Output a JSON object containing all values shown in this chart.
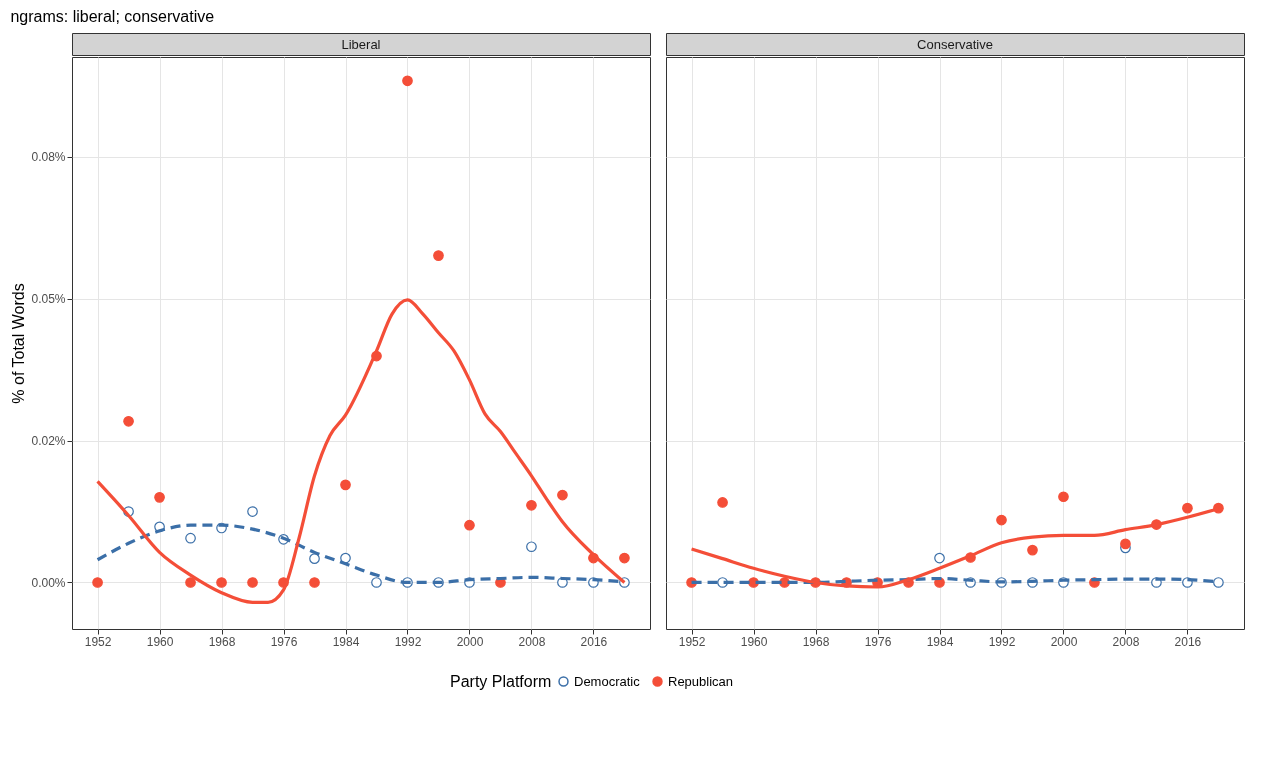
{
  "chart_data": [
    {
      "type": "scatter",
      "title": "ngrams: liberal; conservative",
      "subtitle": "Liberal",
      "ylabel": "% of Total Words",
      "legend_title": "Party Platform",
      "legend": "bottom",
      "grid": true,
      "marker": "circle",
      "x": [
        1952,
        1956,
        1960,
        1964,
        1968,
        1972,
        1976,
        1980,
        1984,
        1988,
        1992,
        1996,
        2000,
        2004,
        2008,
        2012,
        2016,
        2020
      ],
      "xlim": [
        1948.7,
        2023.3
      ],
      "xticks": [
        1952,
        1960,
        1968,
        1976,
        1984,
        1992,
        2000,
        2008,
        2016
      ],
      "ylim": [
        -0.0082,
        0.0926
      ],
      "yticks": [
        {
          "value": 0,
          "label": "0.00%"
        },
        {
          "value": 0.025,
          "label": "0.02%"
        },
        {
          "value": 0.05,
          "label": "0.05%"
        },
        {
          "value": 0.075,
          "label": "0.08%"
        }
      ],
      "series": [
        {
          "name": "Democratic",
          "color": "#3b6fa8",
          "values": [
            null,
            0.0125,
            0.0098,
            0.0078,
            0.0096,
            0.0125,
            0.0076,
            0.0042,
            0.0043,
            0,
            0,
            0,
            0,
            null,
            0.0063,
            0,
            0,
            0
          ]
        },
        {
          "name": "Republican",
          "color": "#f44e38",
          "values": [
            0,
            0.0284,
            0.015,
            0,
            0,
            0,
            0,
            0,
            0.0172,
            0.0399,
            0.0884,
            0.0576,
            0.0101,
            0,
            0.0136,
            0.0154,
            0.0043,
            0.0043
          ]
        },
        {
          "type": "line",
          "marker": "none",
          "line_style": "dashed",
          "color": "#3b6fa8",
          "values": [
            0.004,
            0.0069,
            0.0091,
            0.0101,
            0.0101,
            0.0094,
            0.0078,
            0.0053,
            0.0033,
            0.0013,
            0,
            0,
            0.0005,
            0.0007,
            0.0009,
            0.0007,
            0.0005,
            0.0001
          ]
        },
        {
          "type": "line",
          "marker": "none",
          "line_style": "solid",
          "color": "#f44e38",
          "x": [
            1952,
            1956,
            1960,
            1964,
            1968,
            1972,
            1974,
            1976,
            1978,
            1980,
            1982,
            1984,
            1988,
            1990,
            1992,
            1994,
            1996,
            1998,
            2000,
            2002,
            2004,
            2006,
            2008,
            2010,
            2012,
            2016,
            2020
          ],
          "values": [
            0.0178,
            0.0118,
            0.0053,
            0.0013,
            -0.0018,
            -0.0035,
            -0.0035,
            -0.0013,
            0.0078,
            0.0188,
            0.0259,
            0.0295,
            0.0408,
            0.0473,
            0.0498,
            0.0473,
            0.044,
            0.0408,
            0.0357,
            0.0297,
            0.0266,
            0.0227,
            0.0188,
            0.0146,
            0.0107,
            0.0049,
            0
          ]
        }
      ]
    },
    {
      "type": "scatter",
      "subtitle": "Conservative",
      "grid": true,
      "marker": "circle",
      "tick_labels": "x",
      "x": [
        1952,
        1956,
        1960,
        1964,
        1968,
        1972,
        1976,
        1980,
        1984,
        1988,
        1992,
        1996,
        2000,
        2004,
        2008,
        2012,
        2016,
        2020
      ],
      "xlim": [
        1948.7,
        2023.3
      ],
      "xticks": [
        1952,
        1960,
        1968,
        1976,
        1984,
        1992,
        2000,
        2008,
        2016
      ],
      "ylim": [
        -0.0082,
        0.0926
      ],
      "yticks": [
        0,
        0.025,
        0.05,
        0.075
      ],
      "series": [
        {
          "name": "Democratic",
          "color": "#3b6fa8",
          "values": [
            null,
            0,
            null,
            null,
            null,
            null,
            null,
            null,
            0.0043,
            0,
            0,
            0,
            0,
            null,
            0.0061,
            0,
            0,
            0
          ]
        },
        {
          "name": "Republican",
          "color": "#f44e38",
          "values": [
            0,
            0.0141,
            0,
            0,
            0,
            0,
            0,
            0,
            0,
            0.0044,
            0.011,
            0.0057,
            0.0151,
            0,
            0.0068,
            0.0102,
            0.0131,
            0.0131
          ]
        },
        {
          "type": "line",
          "marker": "none",
          "line_style": "dashed",
          "color": "#3b6fa8",
          "values": [
            0,
            0,
            0,
            0,
            0,
            0.0002,
            0.0004,
            0.0005,
            0.0007,
            0.0004,
            0.0001,
            0.0002,
            0.0004,
            0.0005,
            0.0006,
            0.0006,
            0.0005,
            0.0001
          ]
        },
        {
          "type": "line",
          "marker": "none",
          "line_style": "solid",
          "color": "#f44e38",
          "values": [
            0.0059,
            0.0042,
            0.0025,
            0.0011,
            0,
            -0.0006,
            -0.0008,
            0.0005,
            0.0025,
            0.0047,
            0.007,
            0.008,
            0.0083,
            0.0083,
            0.0093,
            0.0102,
            0.0115,
            0.013
          ]
        }
      ]
    }
  ]
}
